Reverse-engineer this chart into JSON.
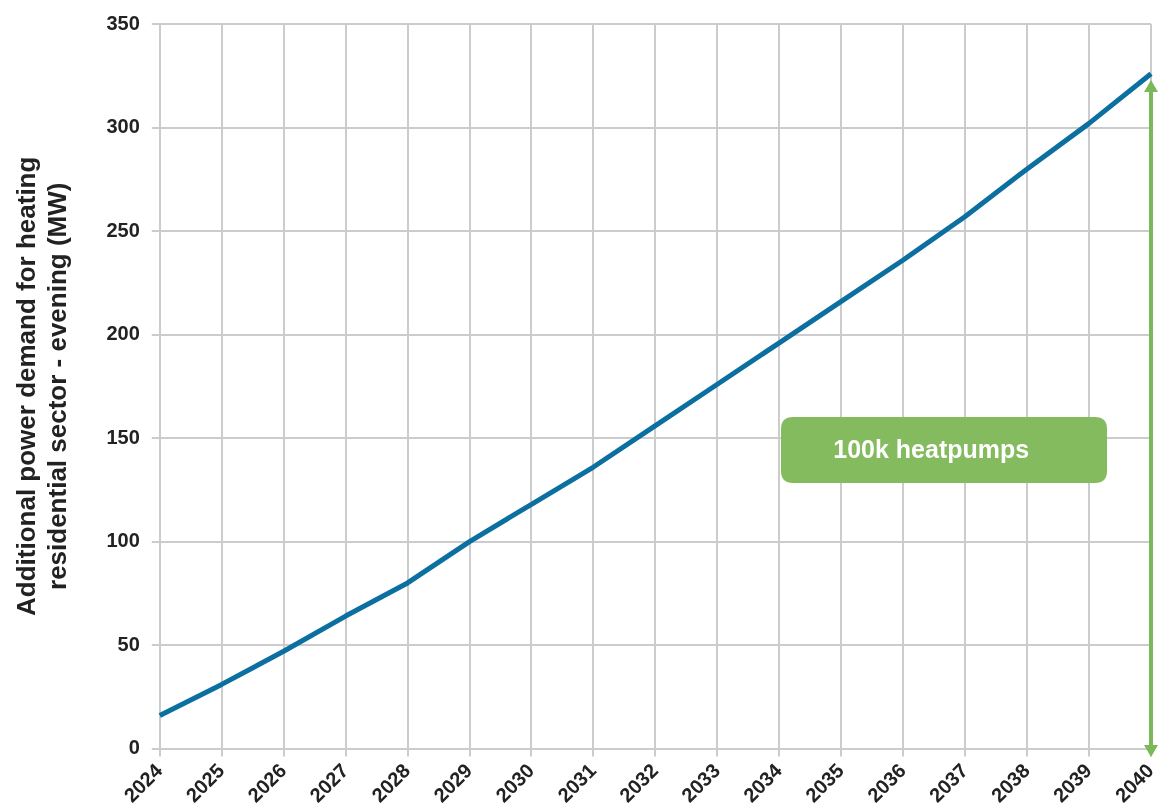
{
  "chart_data": {
    "type": "line",
    "ylabel": "Additional power demand for heating\nresidential sector - evening (MW)",
    "categories": [
      "2024",
      "2025",
      "2026",
      "2027",
      "2028",
      "2029",
      "2030",
      "2031",
      "2032",
      "2033",
      "2034",
      "2035",
      "2036",
      "2037",
      "2038",
      "2039",
      "2040"
    ],
    "series": [
      {
        "color": "#0b6fa0",
        "values": [
          16,
          31,
          47,
          64,
          80,
          100,
          118,
          136,
          156,
          176,
          196,
          216,
          236,
          257,
          280,
          302,
          326
        ]
      }
    ],
    "ylim": [
      0,
      350
    ],
    "yticks": [
      0,
      50,
      100,
      150,
      200,
      250,
      300,
      350
    ],
    "grid": true,
    "legend": false,
    "marker": "none",
    "line_style": "solid",
    "annotations": [
      "100k heatpumps"
    ]
  }
}
